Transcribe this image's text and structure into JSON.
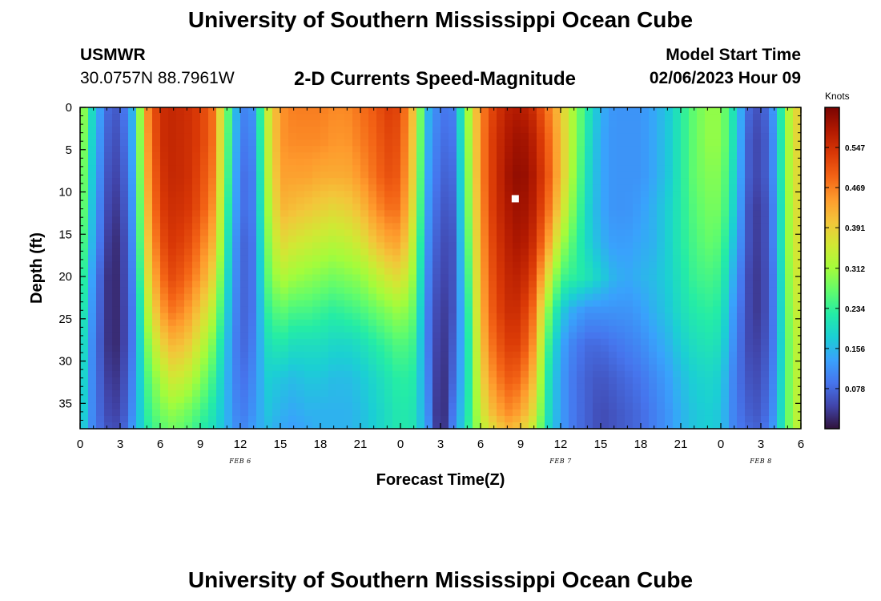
{
  "header": {
    "title": "University of Southern Mississippi Ocean Cube",
    "station": "USMWR",
    "coords": "30.0757N  88.7961W",
    "subtitle": "2-D Currents Speed-Magnitude",
    "start_label": "Model Start Time",
    "start_value": "02/06/2023 Hour 09"
  },
  "footer": {
    "title": "University of Southern Mississippi Ocean Cube"
  },
  "chart_data": {
    "type": "heatmap",
    "xlabel": "Forecast Time(Z)",
    "ylabel": "Depth (ft)",
    "xlim": [
      0,
      54
    ],
    "ylim": [
      38,
      0
    ],
    "x_tick_values": [
      0,
      3,
      6,
      9,
      12,
      15,
      18,
      21,
      24,
      27,
      30,
      33,
      36,
      39,
      42,
      45,
      48,
      51,
      54
    ],
    "x_tick_labels": [
      "0",
      "3",
      "6",
      "9",
      "12",
      "15",
      "18",
      "21",
      "0",
      "3",
      "6",
      "9",
      "12",
      "15",
      "18",
      "21",
      "0",
      "3",
      "6"
    ],
    "y_tick_values": [
      0,
      5,
      10,
      15,
      20,
      25,
      30,
      35
    ],
    "y_tick_labels": [
      "0",
      "5",
      "10",
      "15",
      "20",
      "25",
      "30",
      "35"
    ],
    "date_labels": [
      {
        "x": 12,
        "label": "FEB 6"
      },
      {
        "x": 36,
        "label": "FEB 7"
      },
      {
        "x": 51,
        "label": "FEB 8"
      }
    ],
    "marker": {
      "x": 32.6,
      "y": 10.8
    },
    "colorbar": {
      "units": "Knots",
      "range": [
        0,
        0.625
      ],
      "tick_labels": [
        "0.078",
        "0.156",
        "0.234",
        "0.312",
        "0.391",
        "0.469",
        "0.547"
      ],
      "tick_values": [
        0.078,
        0.156,
        0.234,
        0.312,
        0.391,
        0.469,
        0.547
      ],
      "colors": [
        "#30123b",
        "#4145ab",
        "#4675ed",
        "#39a2fc",
        "#1bcfd4",
        "#24eca6",
        "#61fc6c",
        "#a4fc3b",
        "#d1e834",
        "#f3c63a",
        "#fe9b2d",
        "#f36315",
        "#d93806",
        "#b11901",
        "#7a0402"
      ]
    },
    "depths_ft": [
      0,
      4,
      8,
      12,
      16,
      20,
      24,
      28,
      32,
      36,
      38
    ],
    "hours": [
      0,
      1,
      2,
      3,
      4,
      5,
      6,
      7,
      8,
      9,
      10,
      11,
      12,
      13,
      14,
      15,
      16,
      17,
      18,
      19,
      20,
      21,
      22,
      23,
      24,
      25,
      26,
      27,
      28,
      29,
      30,
      31,
      32,
      33,
      34,
      35,
      36,
      37,
      38,
      39,
      40,
      41,
      42,
      43,
      44,
      45,
      46,
      47,
      48,
      49,
      50,
      51,
      52,
      53,
      54
    ],
    "speed_knots": [
      [
        0.34,
        0.33,
        0.32,
        0.31,
        0.29,
        0.27,
        0.25,
        0.23,
        0.22,
        0.21,
        0.2
      ],
      [
        0.18,
        0.17,
        0.16,
        0.15,
        0.14,
        0.12,
        0.11,
        0.1,
        0.1,
        0.1,
        0.1
      ],
      [
        0.08,
        0.07,
        0.06,
        0.05,
        0.04,
        0.03,
        0.03,
        0.03,
        0.04,
        0.05,
        0.06
      ],
      [
        0.06,
        0.05,
        0.04,
        0.03,
        0.02,
        0.02,
        0.02,
        0.02,
        0.03,
        0.04,
        0.05
      ],
      [
        0.16,
        0.15,
        0.14,
        0.13,
        0.12,
        0.11,
        0.1,
        0.1,
        0.11,
        0.12,
        0.13
      ],
      [
        0.45,
        0.44,
        0.43,
        0.41,
        0.39,
        0.36,
        0.32,
        0.28,
        0.25,
        0.23,
        0.22
      ],
      [
        0.55,
        0.55,
        0.54,
        0.53,
        0.51,
        0.48,
        0.44,
        0.38,
        0.32,
        0.28,
        0.26
      ],
      [
        0.56,
        0.56,
        0.56,
        0.55,
        0.54,
        0.52,
        0.48,
        0.42,
        0.36,
        0.3,
        0.28
      ],
      [
        0.55,
        0.55,
        0.55,
        0.54,
        0.52,
        0.49,
        0.45,
        0.4,
        0.34,
        0.28,
        0.26
      ],
      [
        0.53,
        0.53,
        0.52,
        0.51,
        0.48,
        0.45,
        0.4,
        0.35,
        0.3,
        0.25,
        0.23
      ],
      [
        0.48,
        0.48,
        0.47,
        0.45,
        0.42,
        0.38,
        0.33,
        0.28,
        0.24,
        0.21,
        0.2
      ],
      [
        0.28,
        0.27,
        0.26,
        0.24,
        0.22,
        0.2,
        0.18,
        0.16,
        0.15,
        0.15,
        0.15
      ],
      [
        0.1,
        0.09,
        0.08,
        0.08,
        0.07,
        0.07,
        0.07,
        0.07,
        0.08,
        0.09,
        0.1
      ],
      [
        0.12,
        0.11,
        0.1,
        0.1,
        0.09,
        0.09,
        0.09,
        0.1,
        0.11,
        0.12,
        0.13
      ],
      [
        0.34,
        0.33,
        0.32,
        0.3,
        0.28,
        0.26,
        0.23,
        0.2,
        0.18,
        0.17,
        0.16
      ],
      [
        0.45,
        0.45,
        0.44,
        0.42,
        0.38,
        0.33,
        0.27,
        0.22,
        0.17,
        0.15,
        0.14
      ],
      [
        0.47,
        0.46,
        0.44,
        0.41,
        0.36,
        0.31,
        0.25,
        0.2,
        0.16,
        0.14,
        0.13
      ],
      [
        0.47,
        0.46,
        0.44,
        0.4,
        0.35,
        0.3,
        0.25,
        0.2,
        0.17,
        0.15,
        0.14
      ],
      [
        0.47,
        0.46,
        0.43,
        0.39,
        0.34,
        0.29,
        0.24,
        0.2,
        0.17,
        0.15,
        0.15
      ],
      [
        0.46,
        0.45,
        0.43,
        0.38,
        0.33,
        0.28,
        0.23,
        0.19,
        0.16,
        0.15,
        0.15
      ],
      [
        0.46,
        0.45,
        0.43,
        0.39,
        0.34,
        0.29,
        0.24,
        0.19,
        0.16,
        0.15,
        0.15
      ],
      [
        0.48,
        0.47,
        0.45,
        0.41,
        0.36,
        0.3,
        0.25,
        0.2,
        0.17,
        0.16,
        0.16
      ],
      [
        0.5,
        0.49,
        0.48,
        0.45,
        0.4,
        0.33,
        0.27,
        0.22,
        0.19,
        0.18,
        0.18
      ],
      [
        0.53,
        0.52,
        0.51,
        0.48,
        0.43,
        0.36,
        0.29,
        0.24,
        0.21,
        0.2,
        0.2
      ],
      [
        0.52,
        0.51,
        0.5,
        0.48,
        0.44,
        0.38,
        0.31,
        0.26,
        0.23,
        0.22,
        0.22
      ],
      [
        0.4,
        0.39,
        0.38,
        0.36,
        0.33,
        0.3,
        0.27,
        0.24,
        0.22,
        0.21,
        0.21
      ],
      [
        0.16,
        0.15,
        0.14,
        0.13,
        0.12,
        0.11,
        0.1,
        0.1,
        0.11,
        0.12,
        0.13
      ],
      [
        0.09,
        0.08,
        0.07,
        0.06,
        0.05,
        0.04,
        0.03,
        0.02,
        0.01,
        0.0,
        0.0
      ],
      [
        0.1,
        0.09,
        0.08,
        0.07,
        0.06,
        0.06,
        0.06,
        0.07,
        0.08,
        0.1,
        0.11
      ],
      [
        0.3,
        0.29,
        0.28,
        0.27,
        0.25,
        0.23,
        0.21,
        0.2,
        0.2,
        0.21,
        0.22
      ],
      [
        0.46,
        0.46,
        0.46,
        0.45,
        0.44,
        0.43,
        0.42,
        0.4,
        0.38,
        0.35,
        0.33
      ],
      [
        0.53,
        0.54,
        0.54,
        0.54,
        0.53,
        0.52,
        0.51,
        0.49,
        0.46,
        0.42,
        0.38
      ],
      [
        0.57,
        0.58,
        0.59,
        0.58,
        0.57,
        0.56,
        0.55,
        0.53,
        0.5,
        0.46,
        0.42
      ],
      [
        0.58,
        0.6,
        0.61,
        0.6,
        0.59,
        0.57,
        0.55,
        0.53,
        0.49,
        0.44,
        0.4
      ],
      [
        0.55,
        0.57,
        0.58,
        0.57,
        0.55,
        0.52,
        0.48,
        0.45,
        0.41,
        0.37,
        0.34
      ],
      [
        0.48,
        0.5,
        0.51,
        0.49,
        0.45,
        0.38,
        0.3,
        0.25,
        0.22,
        0.21,
        0.2
      ],
      [
        0.4,
        0.41,
        0.41,
        0.38,
        0.32,
        0.25,
        0.18,
        0.14,
        0.13,
        0.13,
        0.13
      ],
      [
        0.31,
        0.31,
        0.3,
        0.28,
        0.25,
        0.23,
        0.14,
        0.1,
        0.09,
        0.09,
        0.09
      ],
      [
        0.22,
        0.21,
        0.2,
        0.19,
        0.19,
        0.21,
        0.12,
        0.08,
        0.07,
        0.07,
        0.07
      ],
      [
        0.15,
        0.14,
        0.14,
        0.14,
        0.15,
        0.18,
        0.12,
        0.08,
        0.06,
        0.05,
        0.05
      ],
      [
        0.12,
        0.12,
        0.12,
        0.12,
        0.13,
        0.15,
        0.12,
        0.09,
        0.07,
        0.06,
        0.06
      ],
      [
        0.12,
        0.12,
        0.12,
        0.12,
        0.13,
        0.14,
        0.12,
        0.1,
        0.08,
        0.07,
        0.07
      ],
      [
        0.12,
        0.12,
        0.12,
        0.13,
        0.14,
        0.15,
        0.13,
        0.11,
        0.09,
        0.08,
        0.08
      ],
      [
        0.14,
        0.14,
        0.14,
        0.15,
        0.15,
        0.16,
        0.15,
        0.13,
        0.11,
        0.1,
        0.1
      ],
      [
        0.17,
        0.17,
        0.17,
        0.18,
        0.18,
        0.18,
        0.17,
        0.15,
        0.13,
        0.12,
        0.12
      ],
      [
        0.22,
        0.22,
        0.22,
        0.22,
        0.22,
        0.21,
        0.2,
        0.18,
        0.16,
        0.15,
        0.15
      ],
      [
        0.27,
        0.27,
        0.27,
        0.26,
        0.25,
        0.24,
        0.22,
        0.2,
        0.18,
        0.17,
        0.17
      ],
      [
        0.3,
        0.3,
        0.29,
        0.28,
        0.27,
        0.25,
        0.23,
        0.21,
        0.19,
        0.18,
        0.18
      ],
      [
        0.3,
        0.3,
        0.29,
        0.28,
        0.26,
        0.24,
        0.22,
        0.2,
        0.18,
        0.17,
        0.17
      ],
      [
        0.2,
        0.2,
        0.19,
        0.18,
        0.16,
        0.14,
        0.12,
        0.11,
        0.1,
        0.1,
        0.1
      ],
      [
        0.08,
        0.07,
        0.07,
        0.06,
        0.06,
        0.05,
        0.05,
        0.05,
        0.06,
        0.07,
        0.08
      ],
      [
        0.05,
        0.04,
        0.04,
        0.03,
        0.03,
        0.03,
        0.03,
        0.04,
        0.05,
        0.06,
        0.07
      ],
      [
        0.13,
        0.12,
        0.12,
        0.11,
        0.11,
        0.1,
        0.1,
        0.1,
        0.11,
        0.12,
        0.13
      ],
      [
        0.32,
        0.31,
        0.31,
        0.3,
        0.3,
        0.29,
        0.28,
        0.27,
        0.27,
        0.27,
        0.27
      ],
      [
        0.41,
        0.41,
        0.4,
        0.4,
        0.39,
        0.38,
        0.37,
        0.36,
        0.36,
        0.36,
        0.36
      ]
    ]
  }
}
